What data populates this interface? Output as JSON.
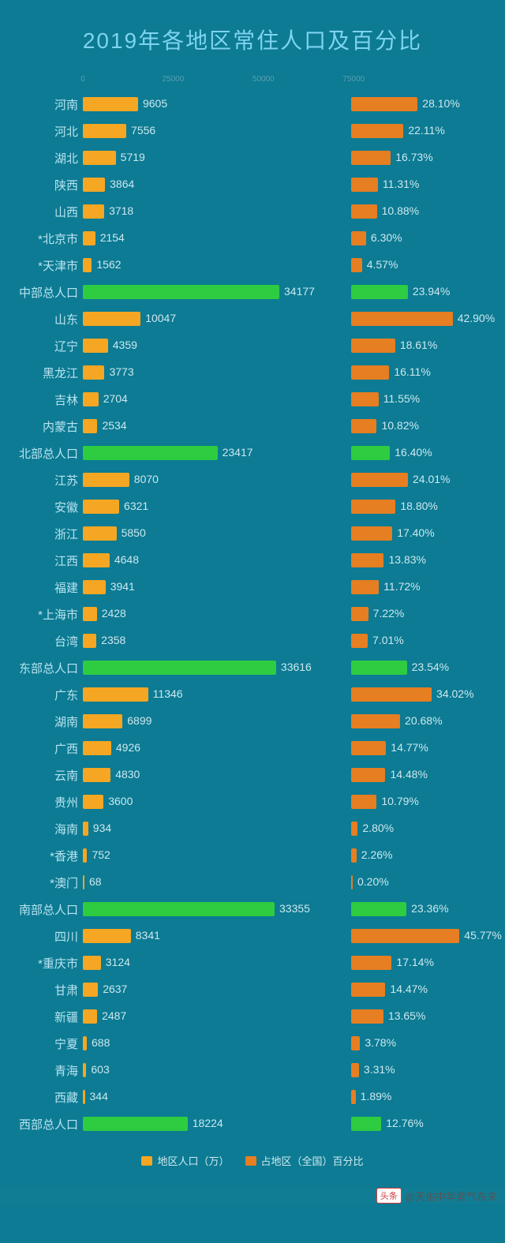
{
  "title": "2019年各地区常住人口及百分比",
  "colors": {
    "background": "#0c7b93",
    "title": "#7ed3f0",
    "label": "#b8e4f0",
    "value_text": "#cde8f0",
    "province_bar": "#f5a623",
    "region_bar": "#2ecc40",
    "pct_bar_province": "#e67e22",
    "pct_bar_region": "#2ecc40",
    "axis_text": "#5a9db0"
  },
  "pop_max": 35000,
  "pct_max": 50,
  "axis_top": {
    "t0": "0",
    "t1": "25000",
    "t2": "50000",
    "t3": "75000"
  },
  "legend": {
    "pop": {
      "color": "#f5a623",
      "text": "地区人口（万）"
    },
    "pct": {
      "color": "#e67e22",
      "text": "占地区（全国）百分比"
    }
  },
  "rows": [
    {
      "label": "河南",
      "pop": 9605,
      "pct": 28.1,
      "pct_label": "28.10%",
      "type": "province"
    },
    {
      "label": "河北",
      "pop": 7556,
      "pct": 22.11,
      "pct_label": "22.11%",
      "type": "province"
    },
    {
      "label": "湖北",
      "pop": 5719,
      "pct": 16.73,
      "pct_label": "16.73%",
      "type": "province"
    },
    {
      "label": "陕西",
      "pop": 3864,
      "pct": 11.31,
      "pct_label": "11.31%",
      "type": "province"
    },
    {
      "label": "山西",
      "pop": 3718,
      "pct": 10.88,
      "pct_label": "10.88%",
      "type": "province"
    },
    {
      "label": "*北京市",
      "pop": 2154,
      "pct": 6.3,
      "pct_label": "6.30%",
      "type": "province"
    },
    {
      "label": "*天津市",
      "pop": 1562,
      "pct": 4.57,
      "pct_label": "4.57%",
      "type": "province"
    },
    {
      "label": "中部总人口",
      "pop": 34177,
      "pct": 23.94,
      "pct_label": "23.94%",
      "type": "region"
    },
    {
      "label": "山东",
      "pop": 10047,
      "pct": 42.9,
      "pct_label": "42.90%",
      "type": "province"
    },
    {
      "label": "辽宁",
      "pop": 4359,
      "pct": 18.61,
      "pct_label": "18.61%",
      "type": "province"
    },
    {
      "label": "黑龙江",
      "pop": 3773,
      "pct": 16.11,
      "pct_label": "16.11%",
      "type": "province"
    },
    {
      "label": "吉林",
      "pop": 2704,
      "pct": 11.55,
      "pct_label": "11.55%",
      "type": "province"
    },
    {
      "label": "内蒙古",
      "pop": 2534,
      "pct": 10.82,
      "pct_label": "10.82%",
      "type": "province"
    },
    {
      "label": "北部总人口",
      "pop": 23417,
      "pct": 16.4,
      "pct_label": "16.40%",
      "type": "region"
    },
    {
      "label": "江苏",
      "pop": 8070,
      "pct": 24.01,
      "pct_label": "24.01%",
      "type": "province"
    },
    {
      "label": "安徽",
      "pop": 6321,
      "pct": 18.8,
      "pct_label": "18.80%",
      "type": "province"
    },
    {
      "label": "浙江",
      "pop": 5850,
      "pct": 17.4,
      "pct_label": "17.40%",
      "type": "province"
    },
    {
      "label": "江西",
      "pop": 4648,
      "pct": 13.83,
      "pct_label": "13.83%",
      "type": "province"
    },
    {
      "label": "福建",
      "pop": 3941,
      "pct": 11.72,
      "pct_label": "11.72%",
      "type": "province"
    },
    {
      "label": "*上海市",
      "pop": 2428,
      "pct": 7.22,
      "pct_label": "7.22%",
      "type": "province"
    },
    {
      "label": "台湾",
      "pop": 2358,
      "pct": 7.01,
      "pct_label": "7.01%",
      "type": "province"
    },
    {
      "label": "东部总人口",
      "pop": 33616,
      "pct": 23.54,
      "pct_label": "23.54%",
      "type": "region"
    },
    {
      "label": "广东",
      "pop": 11346,
      "pct": 34.02,
      "pct_label": "34.02%",
      "type": "province"
    },
    {
      "label": "湖南",
      "pop": 6899,
      "pct": 20.68,
      "pct_label": "20.68%",
      "type": "province"
    },
    {
      "label": "广西",
      "pop": 4926,
      "pct": 14.77,
      "pct_label": "14.77%",
      "type": "province"
    },
    {
      "label": "云南",
      "pop": 4830,
      "pct": 14.48,
      "pct_label": "14.48%",
      "type": "province"
    },
    {
      "label": "贵州",
      "pop": 3600,
      "pct": 10.79,
      "pct_label": "10.79%",
      "type": "province"
    },
    {
      "label": "海南",
      "pop": 934,
      "pct": 2.8,
      "pct_label": "2.80%",
      "type": "province"
    },
    {
      "label": "*香港",
      "pop": 752,
      "pct": 2.26,
      "pct_label": "2.26%",
      "type": "province"
    },
    {
      "label": "*澳门",
      "pop": 68,
      "pct": 0.2,
      "pct_label": "0.20%",
      "type": "province"
    },
    {
      "label": "南部总人口",
      "pop": 33355,
      "pct": 23.36,
      "pct_label": "23.36%",
      "type": "region"
    },
    {
      "label": "四川",
      "pop": 8341,
      "pct": 45.77,
      "pct_label": "45.77%",
      "type": "province"
    },
    {
      "label": "*重庆市",
      "pop": 3124,
      "pct": 17.14,
      "pct_label": "17.14%",
      "type": "province"
    },
    {
      "label": "甘肃",
      "pop": 2637,
      "pct": 14.47,
      "pct_label": "14.47%",
      "type": "province"
    },
    {
      "label": "新疆",
      "pop": 2487,
      "pct": 13.65,
      "pct_label": "13.65%",
      "type": "province"
    },
    {
      "label": "宁夏",
      "pop": 688,
      "pct": 3.78,
      "pct_label": "3.78%",
      "type": "province"
    },
    {
      "label": "青海",
      "pop": 603,
      "pct": 3.31,
      "pct_label": "3.31%",
      "type": "province"
    },
    {
      "label": "西藏",
      "pop": 344,
      "pct": 1.89,
      "pct_label": "1.89%",
      "type": "province"
    },
    {
      "label": "西部总人口",
      "pop": 18224,
      "pct": 12.76,
      "pct_label": "12.76%",
      "type": "region"
    }
  ],
  "footer": {
    "tag": "头条",
    "handle": "@天佑中华紫气东来"
  }
}
